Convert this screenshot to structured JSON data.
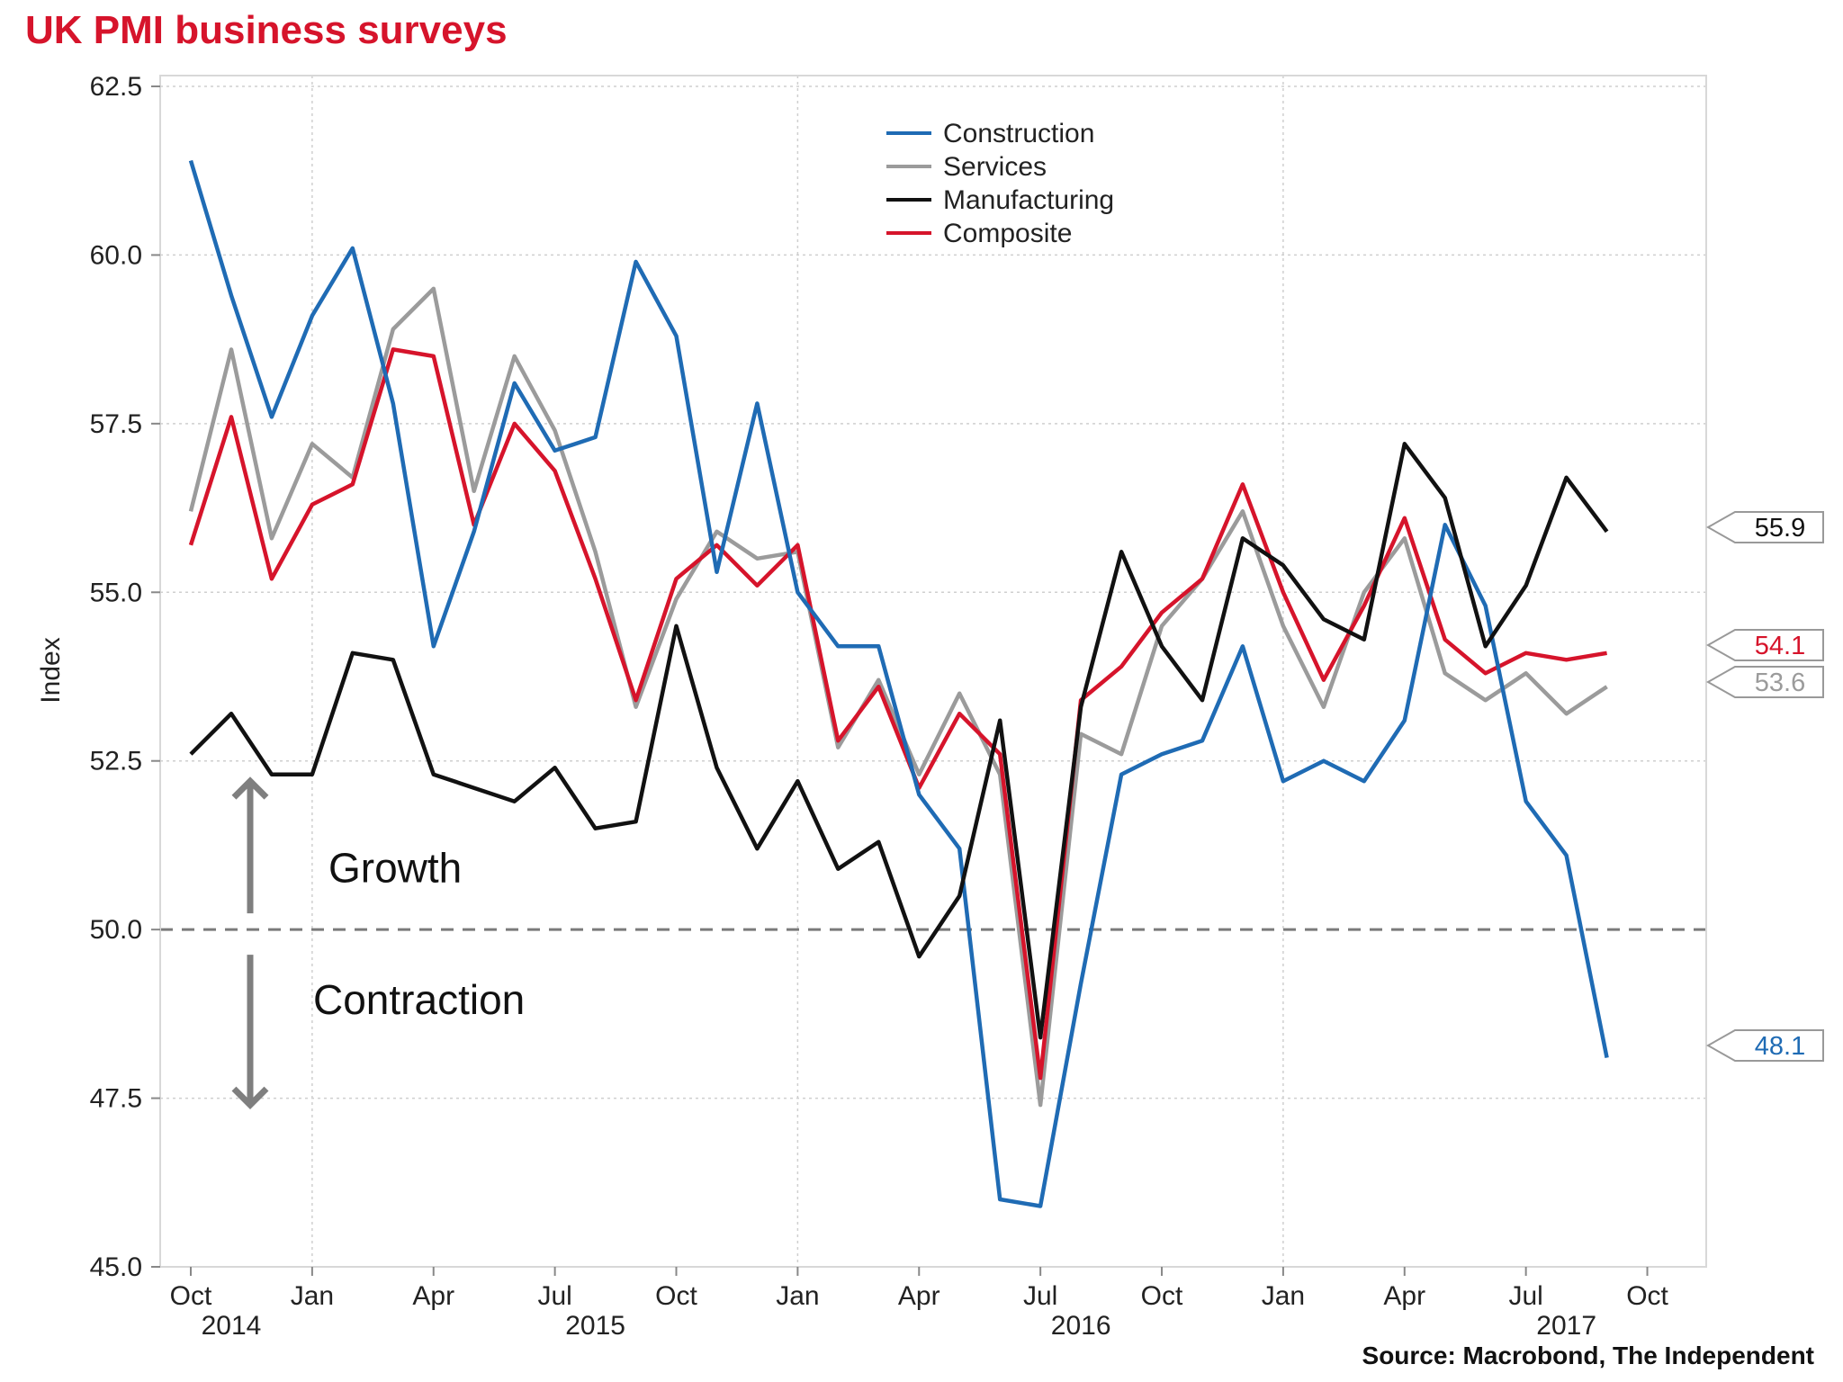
{
  "title": "UK PMI business surveys",
  "source": "Source: Macrobond, The Independent",
  "colors": {
    "title": "#d6142b",
    "construction": "#1f6bb4",
    "services": "#9b9b9b",
    "manufacturing": "#111111",
    "composite": "#d6142b",
    "arrow": "#7f7f7f",
    "grid": "#cfcfcf"
  },
  "annotations": {
    "growth": "Growth",
    "contraction": "Contraction"
  },
  "chart_data": {
    "type": "line",
    "title": "UK PMI business surveys",
    "ylabel": "Index",
    "xlabel": "",
    "ylim": [
      45.0,
      62.5
    ],
    "yticks": [
      "45.0",
      "47.5",
      "50.0",
      "52.5",
      "55.0",
      "57.5",
      "60.0",
      "62.5"
    ],
    "xticks": [
      {
        "month": "Oct",
        "year": "2014"
      },
      {
        "month": "Jan",
        "year": ""
      },
      {
        "month": "Apr",
        "year": ""
      },
      {
        "month": "Jul",
        "year": "2015"
      },
      {
        "month": "Oct",
        "year": ""
      },
      {
        "month": "Jan",
        "year": ""
      },
      {
        "month": "Apr",
        "year": ""
      },
      {
        "month": "Jul",
        "year": "2016"
      },
      {
        "month": "Oct",
        "year": ""
      },
      {
        "month": "Jan",
        "year": ""
      },
      {
        "month": "Apr",
        "year": ""
      },
      {
        "month": "Jul",
        "year": "2017"
      },
      {
        "month": "Oct",
        "year": ""
      }
    ],
    "x": [
      "2014-10",
      "2014-11",
      "2014-12",
      "2015-01",
      "2015-02",
      "2015-03",
      "2015-04",
      "2015-05",
      "2015-06",
      "2015-07",
      "2015-08",
      "2015-09",
      "2015-10",
      "2015-11",
      "2015-12",
      "2016-01",
      "2016-02",
      "2016-03",
      "2016-04",
      "2016-05",
      "2016-06",
      "2016-07",
      "2016-08",
      "2016-09",
      "2016-10",
      "2016-11",
      "2016-12",
      "2017-01",
      "2017-02",
      "2017-03",
      "2017-04",
      "2017-05",
      "2017-06",
      "2017-07",
      "2017-08",
      "2017-09"
    ],
    "reference_line": 50.0,
    "grid": true,
    "legend_position": "top-center",
    "series": [
      {
        "name": "Construction",
        "end_label": "48.1",
        "values": [
          61.4,
          59.4,
          57.6,
          59.1,
          60.1,
          57.8,
          54.2,
          55.9,
          58.1,
          57.1,
          57.3,
          59.9,
          58.8,
          55.3,
          57.8,
          55.0,
          54.2,
          54.2,
          52.0,
          51.2,
          46.0,
          45.9,
          49.2,
          52.3,
          52.6,
          52.8,
          54.2,
          52.2,
          52.5,
          52.2,
          53.1,
          56.0,
          54.8,
          51.9,
          51.1,
          48.1
        ]
      },
      {
        "name": "Services",
        "end_label": "53.6",
        "values": [
          56.2,
          58.6,
          55.8,
          57.2,
          56.7,
          58.9,
          59.5,
          56.5,
          58.5,
          57.4,
          55.6,
          53.3,
          54.9,
          55.9,
          55.5,
          55.6,
          52.7,
          53.7,
          52.3,
          53.5,
          52.3,
          47.4,
          52.9,
          52.6,
          54.5,
          55.2,
          56.2,
          54.5,
          53.3,
          55.0,
          55.8,
          53.8,
          53.4,
          53.8,
          53.2,
          53.6
        ]
      },
      {
        "name": "Manufacturing",
        "end_label": "55.9",
        "values": [
          52.6,
          53.2,
          52.3,
          52.3,
          54.1,
          54.0,
          52.3,
          52.1,
          51.9,
          52.4,
          51.5,
          51.6,
          54.5,
          52.4,
          51.2,
          52.2,
          50.9,
          51.3,
          49.6,
          50.5,
          53.1,
          48.4,
          53.3,
          55.6,
          54.2,
          53.4,
          55.8,
          55.4,
          54.6,
          54.3,
          57.2,
          56.4,
          54.2,
          55.1,
          56.7,
          55.9
        ]
      },
      {
        "name": "Composite",
        "end_label": "54.1",
        "values": [
          55.7,
          57.6,
          55.2,
          56.3,
          56.6,
          58.6,
          58.5,
          56.0,
          57.5,
          56.8,
          55.2,
          53.4,
          55.2,
          55.7,
          55.1,
          55.7,
          52.8,
          53.6,
          52.1,
          53.2,
          52.6,
          47.8,
          53.4,
          53.9,
          54.7,
          55.2,
          56.6,
          55.0,
          53.7,
          54.8,
          56.1,
          54.3,
          53.8,
          54.1,
          54.0,
          54.1
        ]
      }
    ]
  }
}
